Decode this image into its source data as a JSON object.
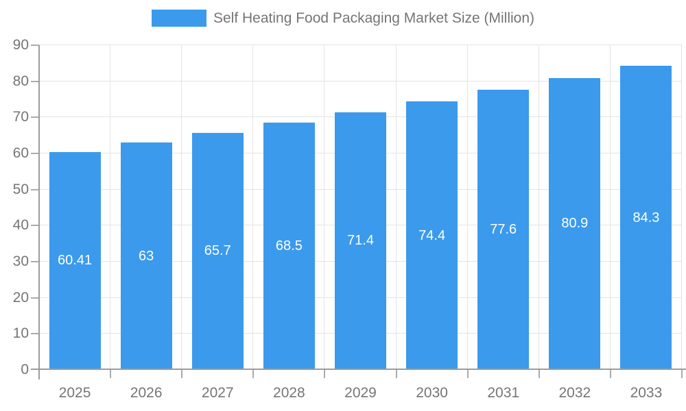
{
  "chart_data": {
    "type": "bar",
    "title": "Self Heating Food Packaging Market Size (Million)",
    "legend": {
      "label": "Self Heating Food Packaging Market Size (Million)",
      "position": "top-center"
    },
    "categories": [
      "2025",
      "2026",
      "2027",
      "2028",
      "2029",
      "2030",
      "2031",
      "2032",
      "2033"
    ],
    "series": [
      {
        "name": "Self Heating Food Packaging Market Size (Million)",
        "values": [
          60.41,
          63,
          65.7,
          68.5,
          71.4,
          74.4,
          77.6,
          80.9,
          84.3
        ],
        "value_labels": [
          "60.41",
          "63",
          "65.7",
          "68.5",
          "71.4",
          "74.4",
          "77.6",
          "80.9",
          "84.3"
        ]
      }
    ],
    "xlabel": "",
    "ylabel": "",
    "ylim": [
      0,
      90
    ],
    "ytick_step": 10,
    "ytick_labels": [
      "0",
      "10",
      "20",
      "30",
      "40",
      "50",
      "60",
      "70",
      "80",
      "90"
    ],
    "grid": true,
    "value_labels_inside_bars": true,
    "colors": {
      "bar": "#3B9AEC",
      "grid": "#E3E3E3",
      "axis": "#9C9C9C",
      "tick": "#ABABAB",
      "text": "#757575",
      "value_label": "#FFFFFF",
      "background": "#FFFFFF"
    }
  }
}
